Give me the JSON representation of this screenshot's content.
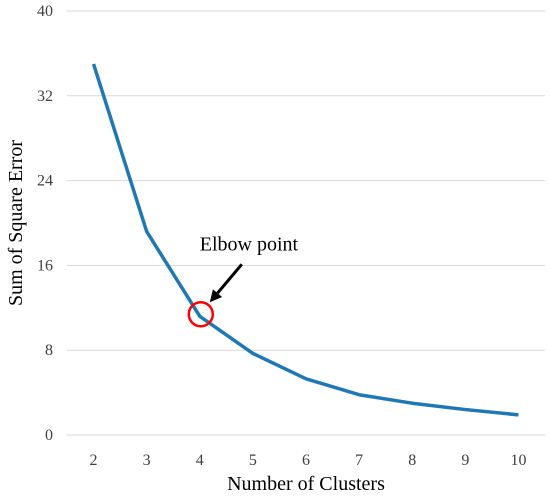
{
  "chart_data": {
    "type": "line",
    "title": "",
    "xlabel": "Number of Clusters",
    "ylabel": "Sum of Square Error",
    "x": [
      2,
      3,
      4,
      5,
      6,
      7,
      8,
      9,
      10
    ],
    "series": [
      {
        "values": [
          35,
          19.2,
          11.2,
          7.7,
          5.3,
          3.8,
          3.0,
          2.4,
          1.9
        ],
        "color": "#1f77b4"
      }
    ],
    "ylim": [
      0,
      40
    ],
    "yticks": [
      0,
      8,
      16,
      24,
      32,
      40
    ],
    "grid": true,
    "legend": "none",
    "annotation": {
      "text": "Elbow point",
      "x": 4,
      "y": 11.2,
      "marker_color": "#ff0000"
    }
  }
}
